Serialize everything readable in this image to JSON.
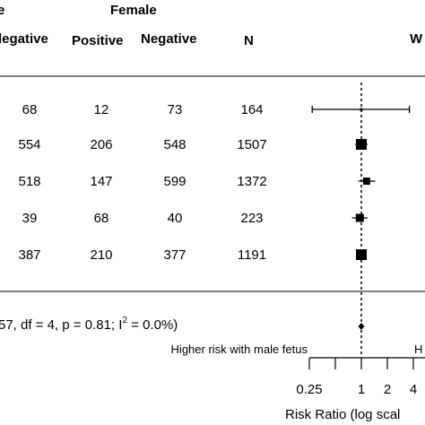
{
  "chart_data": {
    "type": "forest",
    "headers": {
      "male_group_partial": "e",
      "female_group": "Female",
      "male_negative_partial": "legative",
      "female_positive": "Positive",
      "female_negative": "Negative",
      "n": "N",
      "weight_partial": "W"
    },
    "rows": [
      {
        "male_negative": "68",
        "female_positive": "12",
        "female_negative": "73",
        "n": "164",
        "rr": 1.0,
        "ci": [
          0.27,
          3.6
        ]
      },
      {
        "male_negative": "554",
        "female_positive": "206",
        "female_negative": "548",
        "n": "1507",
        "rr": 1.0,
        "ci": [
          0.85,
          1.18
        ]
      },
      {
        "male_negative": "518",
        "female_positive": "147",
        "female_negative": "599",
        "n": "1372",
        "rr": 1.15,
        "ci": [
          0.92,
          1.45
        ]
      },
      {
        "male_negative": "39",
        "female_positive": "68",
        "female_negative": "40",
        "n": "223",
        "rr": 0.96,
        "ci": [
          0.78,
          1.18
        ]
      },
      {
        "male_negative": "387",
        "female_positive": "210",
        "female_negative": "377",
        "n": "1191",
        "rr": 1.0,
        "ci": [
          0.88,
          1.14
        ]
      }
    ],
    "heterogeneity_text": "57, df = 4, p = 0.81; I",
    "heterogeneity_sup": "2",
    "heterogeneity_tail": " = 0.0%)",
    "summary": {
      "rr": 1.0
    },
    "direction_left": "Higher risk with male fetus",
    "direction_right_partial": "H",
    "x_scale": "log",
    "x_ticks": [
      0.25,
      1,
      2,
      4
    ],
    "x_tick_labels": [
      "0.25",
      "1",
      "2",
      "4"
    ],
    "x_axis_range": [
      0.25,
      4
    ],
    "xlabel": "Risk Ratio (log scal",
    "reference_line": 1
  }
}
